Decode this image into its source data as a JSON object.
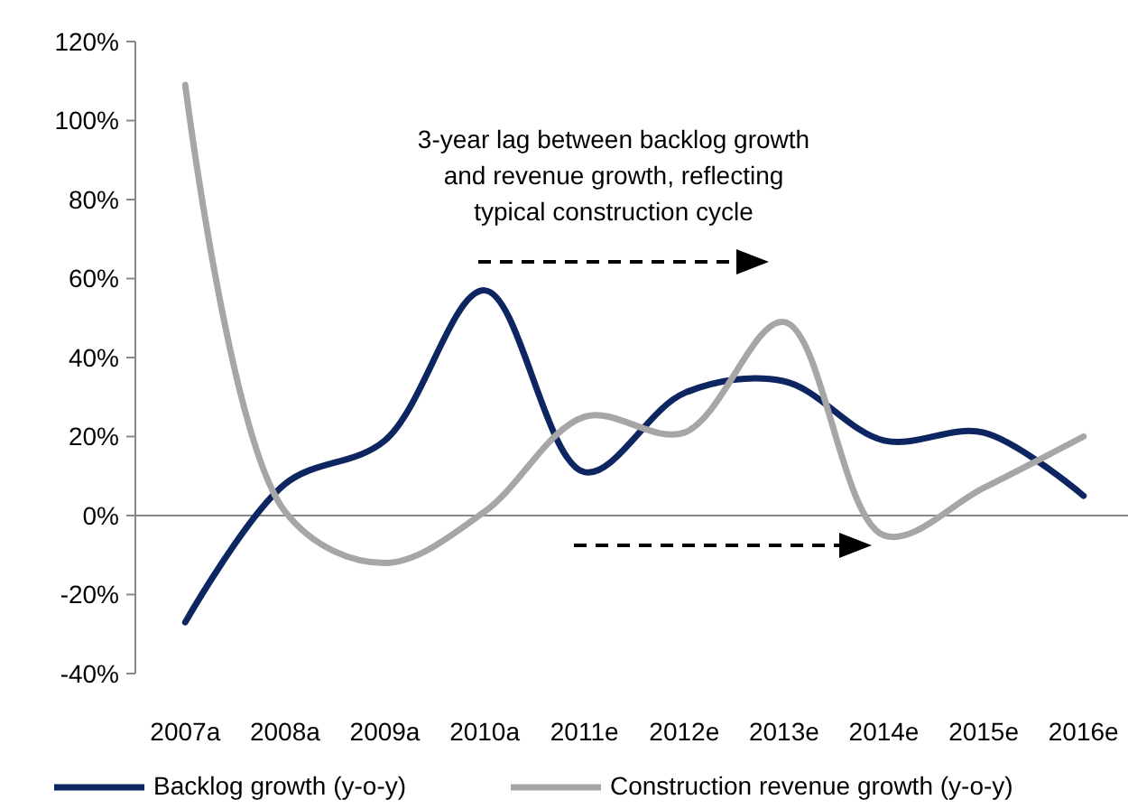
{
  "chart_data": {
    "type": "line",
    "categories": [
      "2007a",
      "2008a",
      "2009a",
      "2010a",
      "2011e",
      "2012e",
      "2013e",
      "2014e",
      "2015e",
      "2016e"
    ],
    "series": [
      {
        "name": "Backlog growth (y-o-y)",
        "color": "#0d2560",
        "values": [
          -27,
          8,
          19,
          57,
          11,
          31,
          34,
          19,
          21,
          5
        ]
      },
      {
        "name": "Construction revenue growth (y-o-y)",
        "color": "#a6a6a6",
        "values": [
          109,
          1,
          -12,
          1,
          25,
          21,
          49,
          -5,
          7,
          20
        ]
      }
    ],
    "ylim": [
      -40,
      120
    ],
    "yticks": [
      {
        "value": -40,
        "label": "-40%"
      },
      {
        "value": -20,
        "label": "-20%"
      },
      {
        "value": 0,
        "label": "0%"
      },
      {
        "value": 20,
        "label": "20%"
      },
      {
        "value": 40,
        "label": "40%"
      },
      {
        "value": 60,
        "label": "60%"
      },
      {
        "value": 80,
        "label": "80%"
      },
      {
        "value": 100,
        "label": "100%"
      },
      {
        "value": 120,
        "label": "120%"
      }
    ],
    "annotations": [
      "3-year lag between backlog growth\nand revenue growth, reflecting\ntypical construction cycle"
    ],
    "legend": "bottom",
    "marker": "none",
    "line_style": "solid"
  }
}
